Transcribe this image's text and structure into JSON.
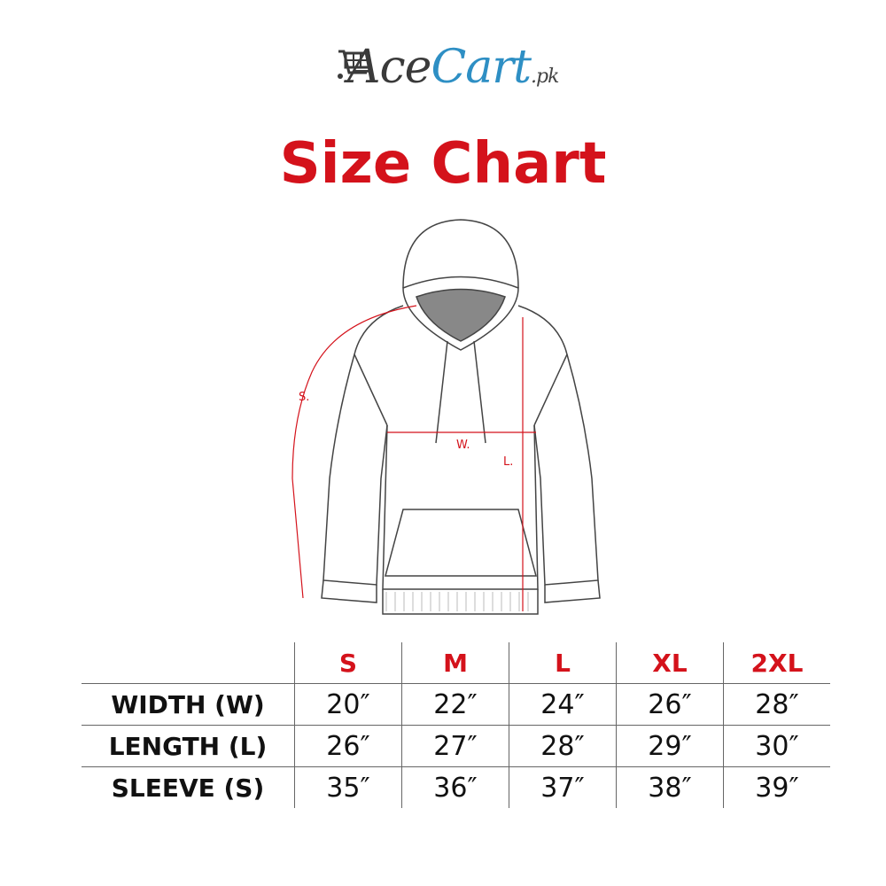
{
  "logo": {
    "part1": "Ace",
    "part2": "Cart",
    "suffix": ".pk",
    "icon": "shopping-cart-icon",
    "colors": {
      "dark": "#3a3a3a",
      "blue": "#2e8fc4"
    }
  },
  "title": "Size Chart",
  "diagram": {
    "labels": {
      "sleeve": "S.",
      "width": "W.",
      "length": "L."
    }
  },
  "accent": "#d4121b",
  "table": {
    "sizes": [
      "S",
      "M",
      "L",
      "XL",
      "2XL"
    ],
    "rows": [
      {
        "label": "WIDTH (W)",
        "values": [
          "20″",
          "22″",
          "24″",
          "26″",
          "28″"
        ]
      },
      {
        "label": "LENGTH (L)",
        "values": [
          "26″",
          "27″",
          "28″",
          "29″",
          "30″"
        ]
      },
      {
        "label": "SLEEVE (S)",
        "values": [
          "35″",
          "36″",
          "37″",
          "38″",
          "39″"
        ]
      }
    ]
  }
}
